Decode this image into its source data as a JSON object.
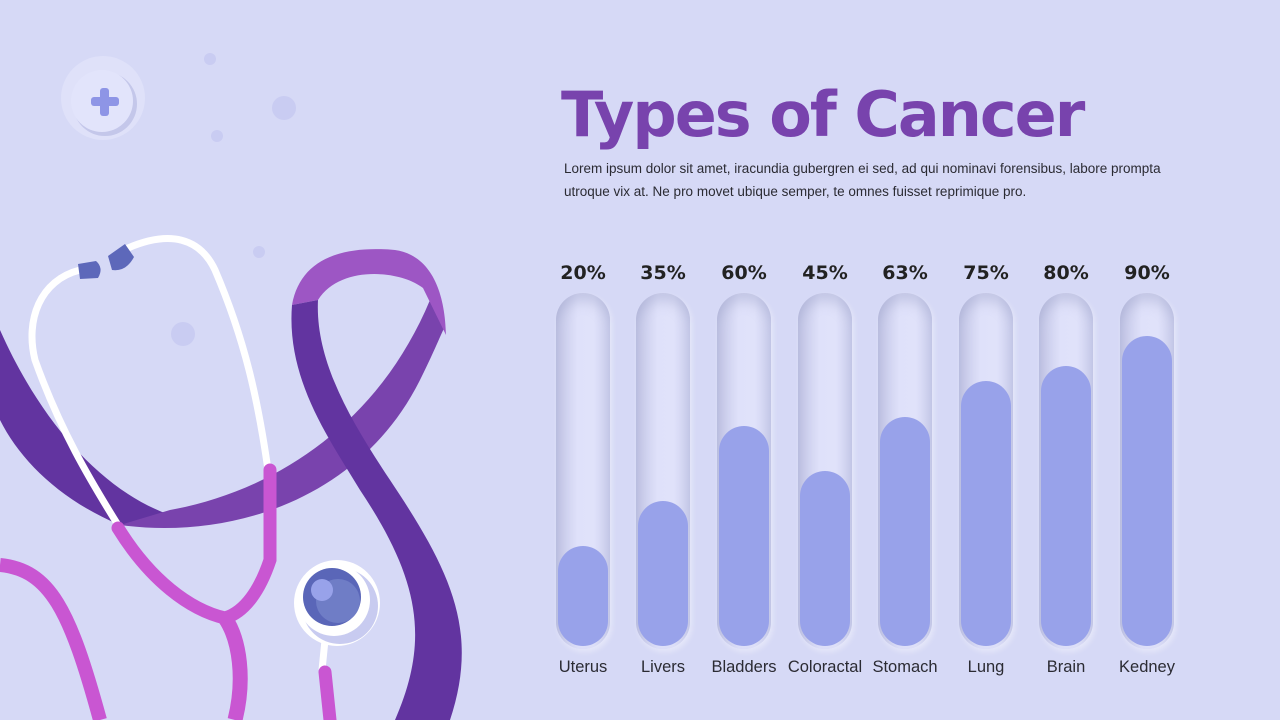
{
  "title": "Types of Cancer",
  "description": "Lorem ipsum dolor sit amet, iracundia gubergren ei sed, ad qui nominavi forensibus, labore prompta utroque vix at. Ne pro movet ubique semper, te omnes fuisset reprimique pro.",
  "colors": {
    "title": "#7843ad",
    "fill": "#98a2ea",
    "background": "#d6d9f6"
  },
  "icons": [
    "plus-badge-icon",
    "stethoscope-illustration",
    "awareness-ribbon-illustration"
  ],
  "chart_data": {
    "type": "bar",
    "categories": [
      "Uterus",
      "Livers",
      "Bladders",
      "Coloractal",
      "Stomach",
      "Lung",
      "Brain",
      "Kedney"
    ],
    "values": [
      20,
      35,
      60,
      45,
      63,
      75,
      80,
      90
    ],
    "labels": [
      "20%",
      "35%",
      "60%",
      "45%",
      "63%",
      "75%",
      "80%",
      "90%"
    ],
    "unit": "%",
    "ylim": [
      0,
      100
    ]
  }
}
